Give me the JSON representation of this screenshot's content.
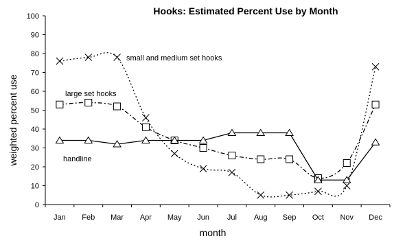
{
  "chart_data": {
    "type": "line",
    "title": "Hooks:  Estimated Percent Use by Month",
    "xlabel": "month",
    "ylabel": "weighted percent use",
    "ylim": [
      0,
      100
    ],
    "yticks": [
      0,
      10,
      20,
      30,
      40,
      50,
      60,
      70,
      80,
      90,
      100
    ],
    "categories": [
      "Jan",
      "Feb",
      "Mar",
      "Apr",
      "May",
      "Jun",
      "Jul",
      "Aug",
      "Sep",
      "Oct",
      "Nov",
      "Dec"
    ],
    "grid": false,
    "series": [
      {
        "name": "small and medium set hooks",
        "marker": "x",
        "line": "dotted",
        "values": [
          76,
          78,
          78,
          46,
          27,
          19,
          17,
          5,
          5,
          7,
          10,
          73
        ]
      },
      {
        "name": "large set hooks",
        "marker": "square",
        "line": "dash-dot",
        "values": [
          53,
          54,
          52,
          41,
          34,
          30,
          26,
          24,
          24,
          14,
          22,
          53
        ]
      },
      {
        "name": "handline",
        "marker": "triangle",
        "line": "solid",
        "values": [
          34,
          34,
          32,
          34,
          34,
          34,
          38,
          38,
          38,
          13,
          13,
          33
        ]
      }
    ]
  }
}
